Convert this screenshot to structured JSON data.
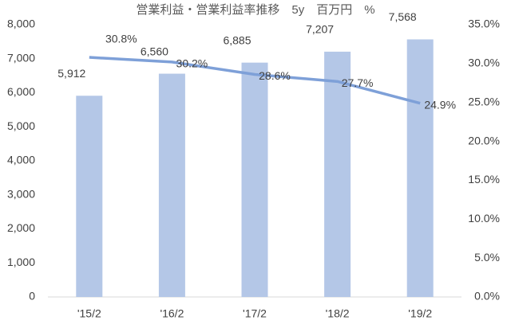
{
  "chart_data": {
    "type": "bar",
    "title": "営業利益・営業利益率推移　5y　百万円　%",
    "categories": [
      "'15/2",
      "'16/2",
      "'17/2",
      "'18/2",
      "'19/2"
    ],
    "series": [
      {
        "type": "bar",
        "color": "#b4c7e7",
        "values": [
          5912,
          6560,
          6885,
          7207,
          7568
        ],
        "value_labels": [
          "5,912",
          "6,560",
          "6,885",
          "7,207",
          "7,568"
        ]
      },
      {
        "type": "line",
        "axis": "y2",
        "color": "#7ea0d8",
        "values": [
          30.8,
          30.2,
          28.6,
          27.7,
          24.9
        ],
        "value_labels": [
          "30.8%",
          "30.2%",
          "28.6%",
          "27.7%",
          "24.9%"
        ]
      }
    ],
    "ylim": [
      0,
      8000
    ],
    "yticks": [
      0,
      {
        "value": 1000,
        "label": "1,000"
      },
      {
        "value": 2000,
        "label": "2,000"
      },
      {
        "value": 3000,
        "label": "3,000"
      },
      {
        "value": 4000,
        "label": "4,000"
      },
      {
        "value": 5000,
        "label": "5,000"
      },
      {
        "value": 6000,
        "label": "6,000"
      },
      {
        "value": 7000,
        "label": "7,000"
      },
      {
        "value": 8000,
        "label": "8,000"
      }
    ],
    "y2lim": [
      0,
      35
    ],
    "y2ticks": [
      {
        "value": 0,
        "label": "0.0%"
      },
      {
        "value": 5,
        "label": "5.0%"
      },
      {
        "value": 10,
        "label": "10.0%"
      },
      {
        "value": 15,
        "label": "15.0%"
      },
      {
        "value": 20,
        "label": "20.0%"
      },
      {
        "value": 25,
        "label": "25.0%"
      },
      {
        "value": 30,
        "label": "30.0%"
      },
      {
        "value": 35,
        "label": "35.0%"
      }
    ]
  }
}
